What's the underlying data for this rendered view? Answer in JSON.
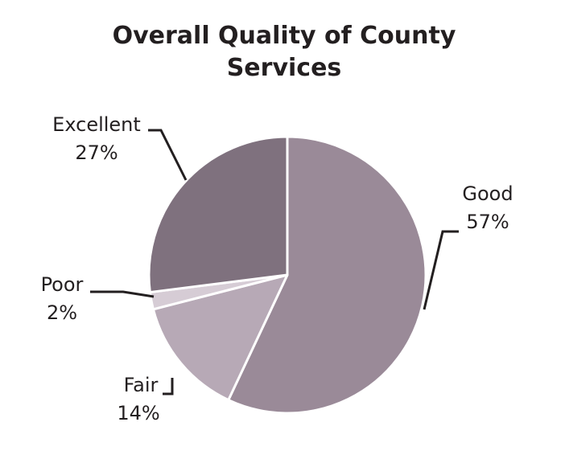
{
  "chart_data": {
    "type": "pie",
    "title_lines": [
      "Overall Quality of County",
      "Services"
    ],
    "slices": [
      {
        "name": "Good",
        "value": 57,
        "label": "57%",
        "color": "#9a8a98"
      },
      {
        "name": "Fair",
        "value": 14,
        "label": "14%",
        "color": "#b7a9b6"
      },
      {
        "name": "Poor",
        "value": 2,
        "label": "2%",
        "color": "#d6ccd5"
      },
      {
        "name": "Excellent",
        "value": 27,
        "label": "27%",
        "color": "#7f717e"
      }
    ],
    "start_angle_deg": 0,
    "direction": "clockwise",
    "legend": "none",
    "labels_position": "outside-with-leader-lines"
  }
}
